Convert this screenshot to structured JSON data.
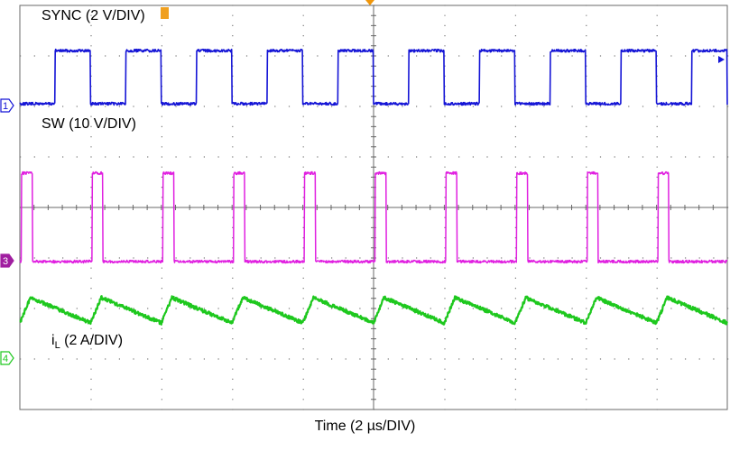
{
  "chart_data": {
    "type": "line",
    "title": "",
    "xlabel": "Time (2 µs/DIV)",
    "x_range_us": [
      0,
      20
    ],
    "divisions": {
      "x": 10,
      "y": 8
    },
    "grid": true,
    "sync_frequency_MHz": 0.5,
    "switching_frequency_MHz": 0.5,
    "series": [
      {
        "name": "SYNC",
        "label": "SYNC (2 V/DIV)",
        "channel": "1",
        "color": "#1515d6",
        "scale": "2 V/DIV",
        "waveform": "square",
        "period_us": 2.0,
        "duty_cycle": 0.5,
        "first_rising_edge_us": 1.0,
        "low_level_div": 0,
        "high_level_div": 1.05,
        "low_level_V": 0,
        "high_level_V": 2.1
      },
      {
        "name": "SW",
        "label": "SW (10 V/DIV)",
        "channel": "3",
        "color": "#e020e0",
        "scale": "10 V/DIV",
        "waveform": "pulse",
        "period_us": 2.0,
        "duty_cycle": 0.15,
        "pulse_start_us": [
          0.05,
          2.05,
          4.05,
          6.05,
          8.05,
          10.05,
          12.05,
          14.05,
          16.05,
          18.05
        ],
        "low_level_div": 0,
        "high_level_div": 1.75,
        "low_level_V": 0,
        "high_level_V": 17.5
      },
      {
        "name": "iL",
        "label_main": "i",
        "label_sub": "L",
        "label_rest": " (2 A/DIV)",
        "channel": "4",
        "color": "#1ec81e",
        "scale": "2 A/DIV",
        "waveform": "triangle",
        "period_us": 2.0,
        "min_div": 0.53,
        "max_div": 1.03,
        "min_A": 1.06,
        "max_A": 2.06,
        "valley_times_us": [
          0.0,
          2.0,
          4.0,
          6.0,
          8.0,
          10.0,
          12.0,
          14.0,
          16.0,
          18.0,
          20.0
        ],
        "peak_times_us": [
          0.3,
          2.3,
          4.3,
          6.3,
          8.3,
          10.3,
          12.3,
          14.3,
          16.3,
          18.3
        ]
      }
    ],
    "channel_markers": [
      "1",
      "3",
      "4"
    ]
  }
}
